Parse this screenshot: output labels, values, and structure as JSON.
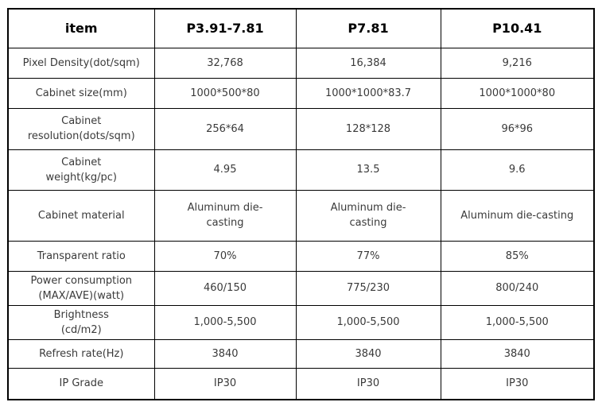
{
  "table": {
    "columns": [
      "item",
      "P3.91-7.81",
      "P7.81",
      "P10.41"
    ],
    "rows": [
      {
        "label_lines": [
          "Pixel Density(dot/sqm)"
        ],
        "values": [
          [
            "32,768"
          ],
          [
            "16,384"
          ],
          [
            "9,216"
          ]
        ]
      },
      {
        "label_lines": [
          "Cabinet size(mm)"
        ],
        "values": [
          [
            "1000*500*80"
          ],
          [
            "1000*1000*83.7"
          ],
          [
            "1000*1000*80"
          ]
        ]
      },
      {
        "label_lines": [
          "Cabinet",
          "resolution(dots/sqm)"
        ],
        "values": [
          [
            "256*64"
          ],
          [
            "128*128"
          ],
          [
            "96*96"
          ]
        ]
      },
      {
        "label_lines": [
          "Cabinet",
          "weight(kg/pc)"
        ],
        "values": [
          [
            "4.95"
          ],
          [
            "13.5"
          ],
          [
            "9.6"
          ]
        ]
      },
      {
        "label_lines": [
          "Cabinet material"
        ],
        "values": [
          [
            "Aluminum die-",
            "casting"
          ],
          [
            "Aluminum die-",
            "casting"
          ],
          [
            "Aluminum die-casting"
          ]
        ]
      },
      {
        "label_lines": [
          "Transparent ratio"
        ],
        "values": [
          [
            "70%"
          ],
          [
            "77%"
          ],
          [
            "85%"
          ]
        ]
      },
      {
        "label_lines": [
          "Power consumption",
          "(MAX/AVE)(watt)"
        ],
        "values": [
          [
            "460/150"
          ],
          [
            "775/230"
          ],
          [
            "800/240"
          ]
        ]
      },
      {
        "label_lines": [
          "Brightness",
          "(cd/m2)"
        ],
        "values": [
          [
            "1,000-5,500"
          ],
          [
            "1,000-5,500"
          ],
          [
            "1,000-5,500"
          ]
        ]
      },
      {
        "label_lines": [
          "Refresh rate(Hz)"
        ],
        "values": [
          [
            "3840"
          ],
          [
            "3840"
          ],
          [
            "3840"
          ]
        ]
      },
      {
        "label_lines": [
          "IP Grade"
        ],
        "values": [
          [
            "IP30"
          ],
          [
            "IP30"
          ],
          [
            "IP30"
          ]
        ]
      }
    ],
    "colors": {
      "border": "#000000",
      "header_text": "#000000",
      "body_text": "#3a3a3a",
      "background": "#ffffff"
    }
  }
}
